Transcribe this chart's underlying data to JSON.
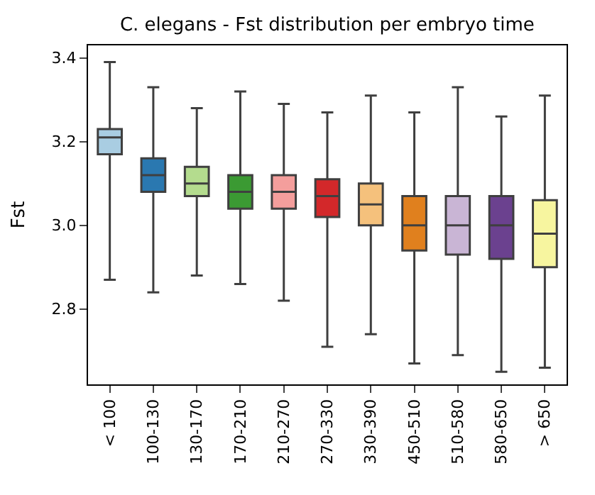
{
  "chart_data": {
    "type": "box",
    "title": "C. elegans - Fst distribution per embryo time",
    "ylabel": "Fst",
    "categories": [
      "< 100",
      "100-130",
      "130-170",
      "170-210",
      "210-270",
      "270-330",
      "330-390",
      "450-510",
      "510-580",
      "580-650",
      "> 650"
    ],
    "colors": [
      "#a9cde2",
      "#2a78b0",
      "#b4dc8e",
      "#3b9a33",
      "#f49e9c",
      "#d3282a",
      "#f5c17c",
      "#e0801e",
      "#c9b5d5",
      "#6b418f",
      "#f7f59f"
    ],
    "boxes": [
      {
        "low": 2.87,
        "q1": 3.17,
        "median": 3.21,
        "q3": 3.23,
        "high": 3.39
      },
      {
        "low": 2.84,
        "q1": 3.08,
        "median": 3.12,
        "q3": 3.16,
        "high": 3.33
      },
      {
        "low": 2.88,
        "q1": 3.07,
        "median": 3.1,
        "q3": 3.14,
        "high": 3.28
      },
      {
        "low": 2.86,
        "q1": 3.04,
        "median": 3.08,
        "q3": 3.12,
        "high": 3.32
      },
      {
        "low": 2.82,
        "q1": 3.04,
        "median": 3.08,
        "q3": 3.12,
        "high": 3.29
      },
      {
        "low": 2.71,
        "q1": 3.02,
        "median": 3.07,
        "q3": 3.11,
        "high": 3.27
      },
      {
        "low": 2.74,
        "q1": 3.0,
        "median": 3.05,
        "q3": 3.1,
        "high": 3.31
      },
      {
        "low": 2.67,
        "q1": 2.94,
        "median": 3.0,
        "q3": 3.07,
        "high": 3.27
      },
      {
        "low": 2.69,
        "q1": 2.93,
        "median": 3.0,
        "q3": 3.07,
        "high": 3.33
      },
      {
        "low": 2.65,
        "q1": 2.92,
        "median": 3.0,
        "q3": 3.07,
        "high": 3.26
      },
      {
        "low": 2.66,
        "q1": 2.9,
        "median": 2.98,
        "q3": 3.06,
        "high": 3.31
      }
    ],
    "ylim": [
      2.62,
      3.43
    ],
    "yticks": [
      {
        "value": 2.8,
        "label": "2.8"
      },
      {
        "value": 3.0,
        "label": "3.0"
      },
      {
        "value": 3.2,
        "label": "3.2"
      },
      {
        "value": 3.4,
        "label": "3.4"
      }
    ]
  }
}
